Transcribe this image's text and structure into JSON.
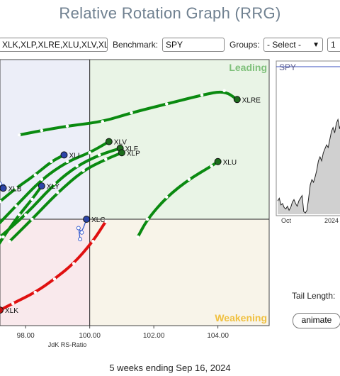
{
  "title": "Relative Rotation Graph (RRG)",
  "controls": {
    "symbols_value": "XLK,XLP,XLRE,XLU,XLV,XL",
    "benchmark_label": "Benchmark:",
    "benchmark_value": "SPY",
    "groups_label": "Groups:",
    "groups_value": "- Select -",
    "extra_select_value": "1"
  },
  "chart_data": [
    {
      "type": "scatter",
      "xlabel": "JdK RS-Ratio",
      "ylabel": "",
      "xlim": [
        97.2,
        105.6
      ],
      "ylim": [
        97.6,
        103.6
      ],
      "center": [
        100,
        100
      ],
      "x_ticks": [
        "98.00",
        "100.00",
        "102.00",
        "104.00"
      ],
      "quadrant_labels": {
        "top_right": "Leading",
        "bottom_right": "Weakening"
      },
      "quadrant_colors": {
        "top_right": "#e9f4e6",
        "bottom_right": "#f8f4e9",
        "top_left": "#eceef8",
        "bottom_left": "#f9e9ec"
      },
      "series": [
        {
          "name": "XLRE",
          "color": "#0a8a10",
          "head_color": "#1c6b1c",
          "points": [
            [
              97.8,
              101.9
            ],
            [
              98.5,
              102.0
            ],
            [
              99.3,
              102.1
            ],
            [
              100.4,
              102.2
            ],
            [
              101.3,
              102.4
            ],
            [
              102.4,
              102.6
            ],
            [
              103.5,
              102.8
            ],
            [
              104.2,
              102.9
            ],
            [
              104.6,
              102.7
            ]
          ]
        },
        {
          "name": "XLV",
          "color": "#0a8a10",
          "head_color": "#1c6b1c",
          "points": [
            [
              96.9,
              99.7
            ],
            [
              97.7,
              100.3
            ],
            [
              98.5,
              100.9
            ],
            [
              99.3,
              101.3
            ],
            [
              100.0,
              101.5
            ],
            [
              100.6,
              101.75
            ]
          ]
        },
        {
          "name": "XLF",
          "color": "#0a8a10",
          "head_color": "#1c6b1c",
          "points": [
            [
              97.2,
              99.6
            ],
            [
              98.0,
              100.1
            ],
            [
              98.9,
              100.8
            ],
            [
              99.6,
              101.2
            ],
            [
              100.3,
              101.45
            ],
            [
              100.95,
              101.6
            ]
          ]
        },
        {
          "name": "XLP",
          "color": "#0a8a10",
          "head_color": "#1c6b1c",
          "points": [
            [
              97.5,
              99.5
            ],
            [
              98.2,
              100.0
            ],
            [
              99.0,
              100.6
            ],
            [
              99.8,
              101.1
            ],
            [
              100.5,
              101.35
            ],
            [
              101.0,
              101.5
            ]
          ]
        },
        {
          "name": "XLU",
          "color": "#0a8a10",
          "head_color": "#1c6b1c",
          "points": [
            [
              101.5,
              99.6
            ],
            [
              101.8,
              100.0
            ],
            [
              102.4,
              100.5
            ],
            [
              103.1,
              100.9
            ],
            [
              103.8,
              101.2
            ],
            [
              104.0,
              101.3
            ]
          ]
        },
        {
          "name": "XLI",
          "color": "#0a8a10",
          "head_color": "#2c44a8",
          "points": [
            [
              97.2,
              100.4
            ],
            [
              97.7,
              100.7
            ],
            [
              98.3,
              101.0
            ],
            [
              98.8,
              101.3
            ],
            [
              99.2,
              101.45
            ]
          ]
        },
        {
          "name": "XLY",
          "color": "#0a8a10",
          "head_color": "#2c44a8",
          "points": [
            [
              96.8,
              99.0
            ],
            [
              97.3,
              99.6
            ],
            [
              97.8,
              100.1
            ],
            [
              98.2,
              100.45
            ],
            [
              98.5,
              100.75
            ]
          ]
        },
        {
          "name": "XLC",
          "color": "#3a5fcf",
          "head_color": "#2c44a8",
          "points": [
            [
              99.7,
              99.55
            ],
            [
              99.65,
              99.8
            ],
            [
              99.75,
              99.7
            ],
            [
              99.9,
              100.0
            ]
          ]
        },
        {
          "name": "XLB",
          "color": "#3a5fcf",
          "head_color": "#2c44a8",
          "points": [
            [
              96.9,
              101.1
            ],
            [
              97.1,
              100.9
            ],
            [
              97.2,
              100.8
            ],
            [
              97.3,
              100.75
            ],
            [
              97.3,
              100.7
            ]
          ]
        },
        {
          "name": "XLK",
          "color": "#e01010",
          "head_color": "#c01010",
          "points": [
            [
              100.5,
              99.95
            ],
            [
              100.1,
              99.5
            ],
            [
              99.5,
              99.0
            ],
            [
              98.9,
              98.65
            ],
            [
              98.3,
              98.35
            ],
            [
              97.6,
              98.1
            ],
            [
              97.2,
              97.95
            ]
          ]
        }
      ]
    },
    {
      "type": "line",
      "title": "SPY",
      "x_ticks": [
        "Oct",
        "2024"
      ],
      "color": "#222222",
      "fill": "#d0d0d0",
      "values": [
        0.1,
        0.12,
        0.07,
        0.08,
        0.05,
        0.04,
        0.06,
        0.03,
        0.05,
        0.09,
        0.11,
        0.08,
        0.06,
        0.1,
        0.12,
        0.14,
        0.02,
        0.01,
        0.03,
        0.12,
        0.22,
        0.26,
        0.24,
        0.28,
        0.33,
        0.4,
        0.43,
        0.4,
        0.46,
        0.49,
        0.52,
        0.5,
        0.56,
        0.62,
        0.65,
        0.61,
        0.68,
        0.71,
        0.64,
        0.69,
        0.74
      ]
    }
  ],
  "tail_length_label": "Tail Length:",
  "animate_label": "animate",
  "footer": "5 weeks ending Sep 16, 2024"
}
